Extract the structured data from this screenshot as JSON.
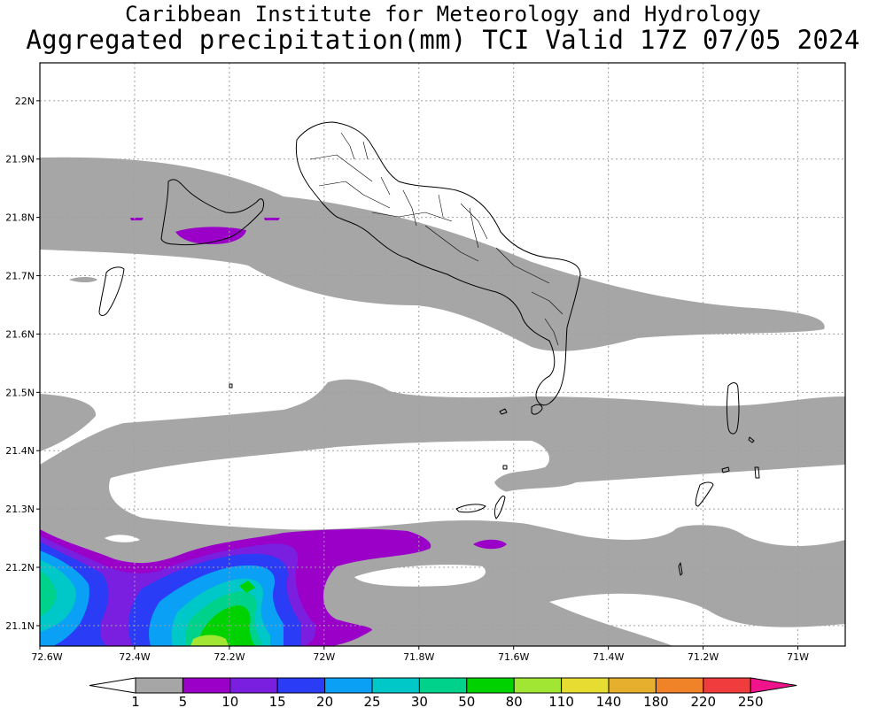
{
  "header": {
    "line1": "Caribbean Institute for Meteorology and Hydrology",
    "line2": "Aggregated precipitation(mm) TCI Valid 17Z 07/05 2024"
  },
  "map": {
    "lon_range": [
      -72.6,
      -70.9
    ],
    "lat_range": [
      21.065,
      22.065
    ],
    "lon_ticks": [
      {
        "value": -72.6,
        "label": "72.6W"
      },
      {
        "value": -72.4,
        "label": "72.4W"
      },
      {
        "value": -72.2,
        "label": "72.2W"
      },
      {
        "value": -72.0,
        "label": "72W"
      },
      {
        "value": -71.8,
        "label": "71.8W"
      },
      {
        "value": -71.6,
        "label": "71.6W"
      },
      {
        "value": -71.4,
        "label": "71.4W"
      },
      {
        "value": -71.2,
        "label": "71.2W"
      },
      {
        "value": -71.0,
        "label": "71W"
      }
    ],
    "lat_ticks": [
      {
        "value": 21.1,
        "label": "21.1N"
      },
      {
        "value": 21.2,
        "label": "21.2N"
      },
      {
        "value": 21.3,
        "label": "21.3N"
      },
      {
        "value": 21.4,
        "label": "21.4N"
      },
      {
        "value": 21.5,
        "label": "21.5N"
      },
      {
        "value": 21.6,
        "label": "21.6N"
      },
      {
        "value": 21.7,
        "label": "21.7N"
      },
      {
        "value": 21.8,
        "label": "21.8N"
      },
      {
        "value": 21.9,
        "label": "21.9N"
      },
      {
        "value": 22.0,
        "label": "22N"
      }
    ],
    "grid": true
  },
  "colorbar": {
    "levels": [
      "1",
      "5",
      "10",
      "15",
      "20",
      "25",
      "30",
      "50",
      "80",
      "110",
      "140",
      "180",
      "220",
      "250"
    ],
    "colors": [
      "#a6a6a6",
      "#9b00c8",
      "#7a1fe0",
      "#2a3cf5",
      "#0aa0f5",
      "#00c8c8",
      "#00d28c",
      "#00d200",
      "#a0e632",
      "#e6dc32",
      "#e6af2d",
      "#f08228",
      "#f03c3c"
    ],
    "under_color": "#ffffff",
    "over_color": "#f0148c"
  },
  "colors": {
    "land_outline": "#000000",
    "grid": "#a0a0a0",
    "background": "#ffffff"
  }
}
